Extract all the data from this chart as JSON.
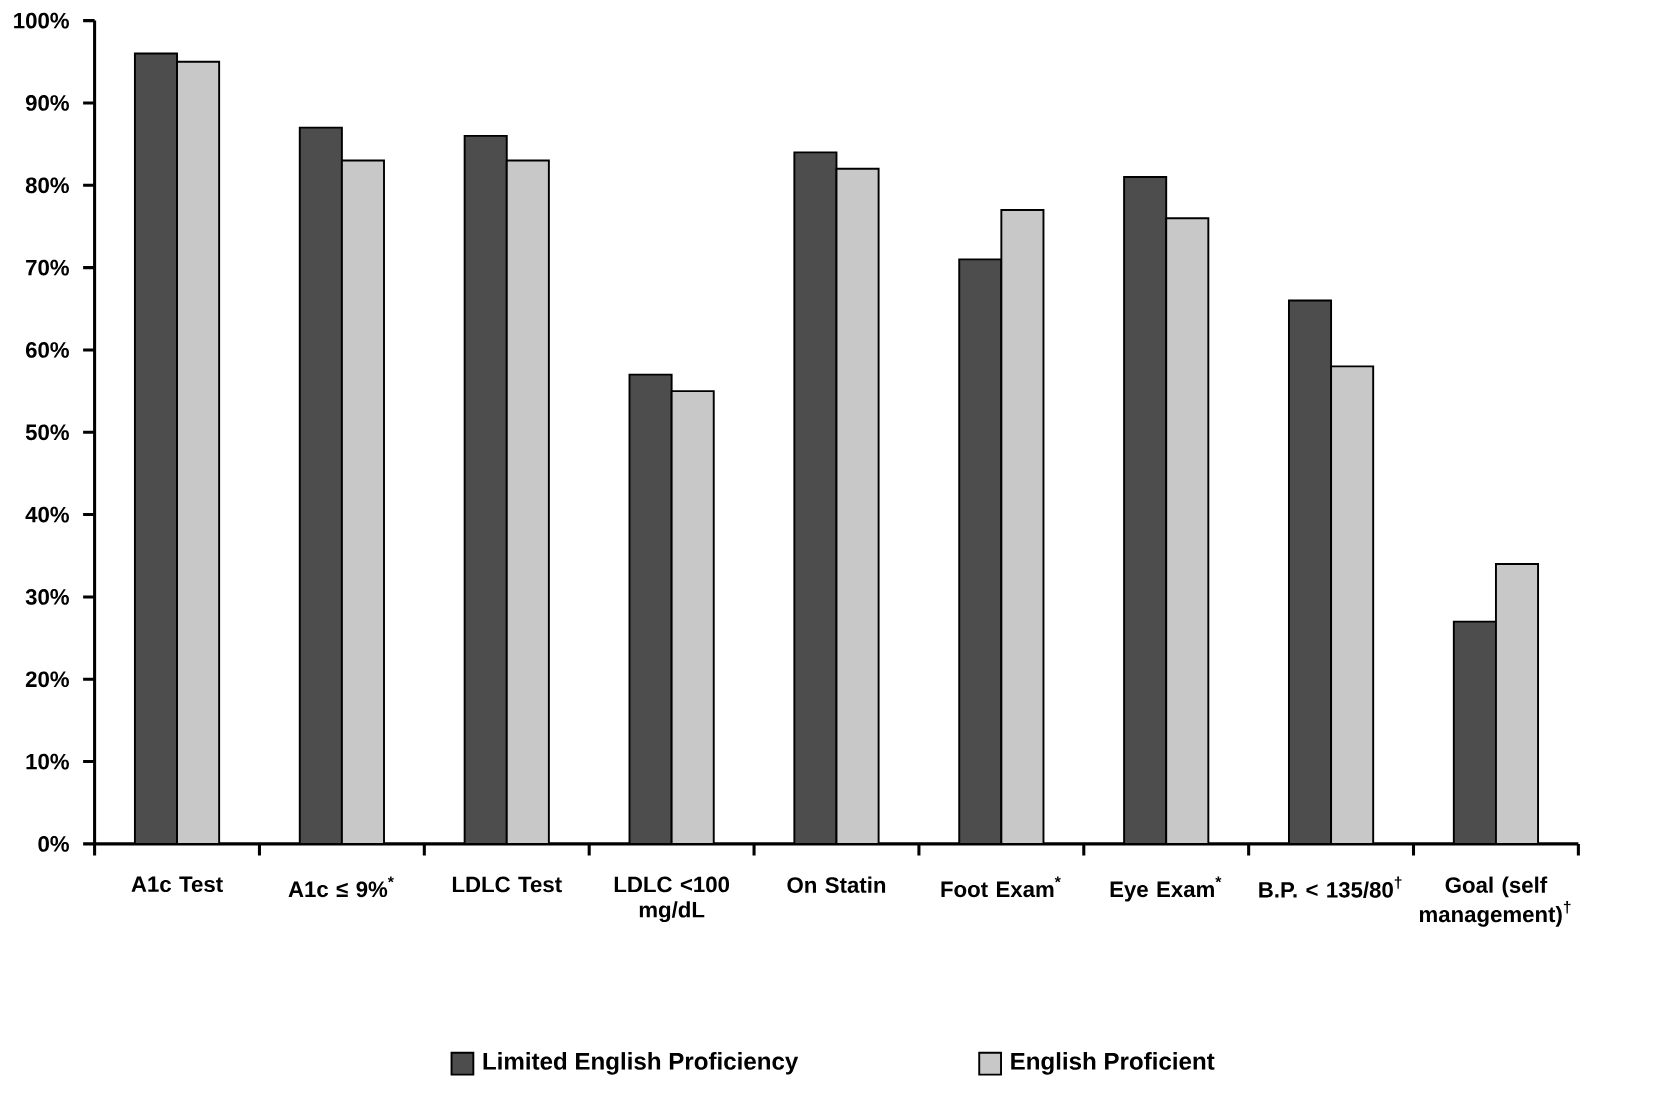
{
  "chart_data": {
    "type": "bar",
    "categories": [
      "A1c Test",
      "A1c ≤ 9%$^{*}$",
      "LDLC Test",
      "LDLC <100 mg/dL",
      "On Statin",
      "Foot Exam$^{*}$",
      "Eye Exam$^{*}$",
      "B.P. < 135/80$^{†}$",
      "Goal (self management)$^{†}$"
    ],
    "series": [
      {
        "name": "Limited English Proficiency",
        "color": "#4d4d4d",
        "values": [
          96,
          87,
          86,
          57,
          84,
          71,
          81,
          66,
          27
        ]
      },
      {
        "name": "English Proficient",
        "color": "#c8c8c8",
        "values": [
          95,
          83,
          83,
          55,
          82,
          77,
          76,
          58,
          34
        ]
      }
    ],
    "ylim": [
      0,
      100
    ],
    "yticks": [
      {
        "value": 0,
        "label": "0%"
      },
      {
        "value": 10,
        "label": "10%"
      },
      {
        "value": 20,
        "label": "20%"
      },
      {
        "value": 30,
        "label": "30%"
      },
      {
        "value": 40,
        "label": "40%"
      },
      {
        "value": 50,
        "label": "50%"
      },
      {
        "value": 60,
        "label": "60%"
      },
      {
        "value": 70,
        "label": "70%"
      },
      {
        "value": 80,
        "label": "80%"
      },
      {
        "value": 90,
        "label": "90%"
      },
      {
        "value": 100,
        "label": "100%"
      }
    ],
    "legend": "bottom"
  }
}
